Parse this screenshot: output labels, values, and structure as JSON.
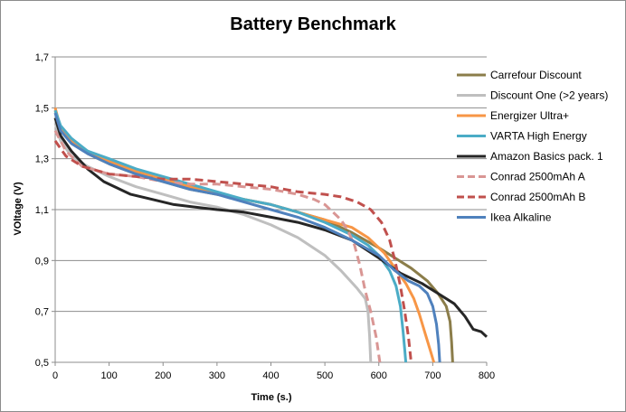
{
  "chart_data": {
    "type": "line",
    "title": "Battery Benchmark",
    "xlabel": "Time (s.)",
    "ylabel": "VOltage (V)",
    "xlim": [
      0,
      800
    ],
    "ylim": [
      0.5,
      1.7
    ],
    "x_ticks": [
      "0",
      "100",
      "200",
      "300",
      "400",
      "500",
      "600",
      "700",
      "800"
    ],
    "y_ticks": [
      "0,5",
      "0,7",
      "0,9",
      "1,1",
      "1,3",
      "1,5",
      "1,7"
    ],
    "grid": "horizontal",
    "legend_position": "right",
    "series": [
      {
        "name": "Carrefour Discount",
        "color": "#8b7d4a",
        "dash": "solid",
        "points": [
          [
            0,
            1.49
          ],
          [
            10,
            1.42
          ],
          [
            30,
            1.37
          ],
          [
            60,
            1.32
          ],
          [
            100,
            1.28
          ],
          [
            150,
            1.24
          ],
          [
            200,
            1.21
          ],
          [
            250,
            1.18
          ],
          [
            300,
            1.16
          ],
          [
            350,
            1.14
          ],
          [
            400,
            1.12
          ],
          [
            450,
            1.09
          ],
          [
            500,
            1.06
          ],
          [
            550,
            1.01
          ],
          [
            600,
            0.95
          ],
          [
            630,
            0.91
          ],
          [
            660,
            0.87
          ],
          [
            690,
            0.82
          ],
          [
            710,
            0.77
          ],
          [
            725,
            0.72
          ],
          [
            732,
            0.66
          ],
          [
            735,
            0.58
          ],
          [
            737,
            0.5
          ]
        ]
      },
      {
        "name": "Discount One (>2 years)",
        "color": "#bfbfbf",
        "dash": "solid",
        "points": [
          [
            0,
            1.44
          ],
          [
            10,
            1.37
          ],
          [
            30,
            1.31
          ],
          [
            60,
            1.27
          ],
          [
            100,
            1.23
          ],
          [
            150,
            1.19
          ],
          [
            200,
            1.16
          ],
          [
            250,
            1.13
          ],
          [
            300,
            1.11
          ],
          [
            350,
            1.08
          ],
          [
            400,
            1.04
          ],
          [
            450,
            0.99
          ],
          [
            500,
            0.92
          ],
          [
            530,
            0.86
          ],
          [
            560,
            0.79
          ],
          [
            575,
            0.75
          ],
          [
            580,
            0.7
          ],
          [
            583,
            0.6
          ],
          [
            585,
            0.5
          ]
        ]
      },
      {
        "name": "Energizer Ultra+",
        "color": "#f79646",
        "dash": "solid",
        "points": [
          [
            0,
            1.5
          ],
          [
            10,
            1.42
          ],
          [
            30,
            1.37
          ],
          [
            60,
            1.33
          ],
          [
            100,
            1.29
          ],
          [
            150,
            1.25
          ],
          [
            200,
            1.22
          ],
          [
            250,
            1.19
          ],
          [
            300,
            1.16
          ],
          [
            350,
            1.14
          ],
          [
            400,
            1.12
          ],
          [
            450,
            1.09
          ],
          [
            500,
            1.06
          ],
          [
            550,
            1.03
          ],
          [
            580,
            0.99
          ],
          [
            610,
            0.93
          ],
          [
            630,
            0.87
          ],
          [
            650,
            0.81
          ],
          [
            665,
            0.75
          ],
          [
            675,
            0.69
          ],
          [
            685,
            0.62
          ],
          [
            695,
            0.55
          ],
          [
            702,
            0.5
          ]
        ]
      },
      {
        "name": "VARTA High Energy",
        "color": "#4bacc6",
        "dash": "solid",
        "points": [
          [
            0,
            1.49
          ],
          [
            10,
            1.43
          ],
          [
            30,
            1.38
          ],
          [
            60,
            1.33
          ],
          [
            100,
            1.3
          ],
          [
            150,
            1.26
          ],
          [
            200,
            1.23
          ],
          [
            250,
            1.2
          ],
          [
            300,
            1.17
          ],
          [
            350,
            1.14
          ],
          [
            400,
            1.12
          ],
          [
            450,
            1.09
          ],
          [
            500,
            1.05
          ],
          [
            550,
            1.0
          ],
          [
            580,
            0.96
          ],
          [
            600,
            0.92
          ],
          [
            620,
            0.86
          ],
          [
            632,
            0.8
          ],
          [
            640,
            0.72
          ],
          [
            645,
            0.62
          ],
          [
            648,
            0.55
          ],
          [
            650,
            0.5
          ]
        ]
      },
      {
        "name": "Amazon Basics pack. 1",
        "color": "#262626",
        "dash": "solid",
        "points": [
          [
            0,
            1.46
          ],
          [
            10,
            1.39
          ],
          [
            30,
            1.33
          ],
          [
            60,
            1.26
          ],
          [
            90,
            1.21
          ],
          [
            120,
            1.18
          ],
          [
            140,
            1.16
          ],
          [
            180,
            1.14
          ],
          [
            220,
            1.12
          ],
          [
            260,
            1.11
          ],
          [
            300,
            1.1
          ],
          [
            350,
            1.09
          ],
          [
            400,
            1.07
          ],
          [
            450,
            1.05
          ],
          [
            500,
            1.02
          ],
          [
            550,
            0.98
          ],
          [
            600,
            0.91
          ],
          [
            640,
            0.85
          ],
          [
            680,
            0.81
          ],
          [
            710,
            0.77
          ],
          [
            740,
            0.73
          ],
          [
            760,
            0.68
          ],
          [
            775,
            0.63
          ],
          [
            790,
            0.62
          ],
          [
            800,
            0.6
          ]
        ]
      },
      {
        "name": "Conrad 2500mAh A",
        "color": "#d99694",
        "dash": "dashed",
        "points": [
          [
            0,
            1.41
          ],
          [
            20,
            1.33
          ],
          [
            50,
            1.27
          ],
          [
            100,
            1.24
          ],
          [
            150,
            1.23
          ],
          [
            200,
            1.21
          ],
          [
            250,
            1.2
          ],
          [
            300,
            1.2
          ],
          [
            350,
            1.19
          ],
          [
            400,
            1.18
          ],
          [
            450,
            1.16
          ],
          [
            480,
            1.14
          ],
          [
            500,
            1.12
          ],
          [
            515,
            1.09
          ],
          [
            530,
            1.06
          ],
          [
            542,
            1.02
          ],
          [
            555,
            0.96
          ],
          [
            565,
            0.88
          ],
          [
            575,
            0.78
          ],
          [
            585,
            0.7
          ],
          [
            595,
            0.6
          ],
          [
            602,
            0.5
          ]
        ]
      },
      {
        "name": "Conrad 2500mAh B",
        "color": "#c0504d",
        "dash": "dashed",
        "points": [
          [
            0,
            1.37
          ],
          [
            20,
            1.31
          ],
          [
            50,
            1.27
          ],
          [
            100,
            1.24
          ],
          [
            150,
            1.23
          ],
          [
            200,
            1.22
          ],
          [
            250,
            1.22
          ],
          [
            300,
            1.21
          ],
          [
            350,
            1.2
          ],
          [
            400,
            1.19
          ],
          [
            450,
            1.17
          ],
          [
            500,
            1.16
          ],
          [
            530,
            1.15
          ],
          [
            560,
            1.13
          ],
          [
            585,
            1.1
          ],
          [
            605,
            1.05
          ],
          [
            620,
            0.98
          ],
          [
            630,
            0.9
          ],
          [
            640,
            0.8
          ],
          [
            648,
            0.7
          ],
          [
            655,
            0.6
          ],
          [
            660,
            0.5
          ]
        ]
      },
      {
        "name": "Ikea Alkaline",
        "color": "#4f81bd",
        "dash": "solid",
        "points": [
          [
            0,
            1.48
          ],
          [
            10,
            1.41
          ],
          [
            30,
            1.36
          ],
          [
            60,
            1.32
          ],
          [
            100,
            1.28
          ],
          [
            150,
            1.24
          ],
          [
            200,
            1.21
          ],
          [
            250,
            1.18
          ],
          [
            300,
            1.16
          ],
          [
            350,
            1.13
          ],
          [
            400,
            1.1
          ],
          [
            450,
            1.07
          ],
          [
            500,
            1.03
          ],
          [
            550,
            0.98
          ],
          [
            600,
            0.92
          ],
          [
            630,
            0.86
          ],
          [
            655,
            0.82
          ],
          [
            675,
            0.8
          ],
          [
            690,
            0.77
          ],
          [
            700,
            0.72
          ],
          [
            707,
            0.65
          ],
          [
            711,
            0.57
          ],
          [
            713,
            0.5
          ]
        ]
      }
    ]
  }
}
